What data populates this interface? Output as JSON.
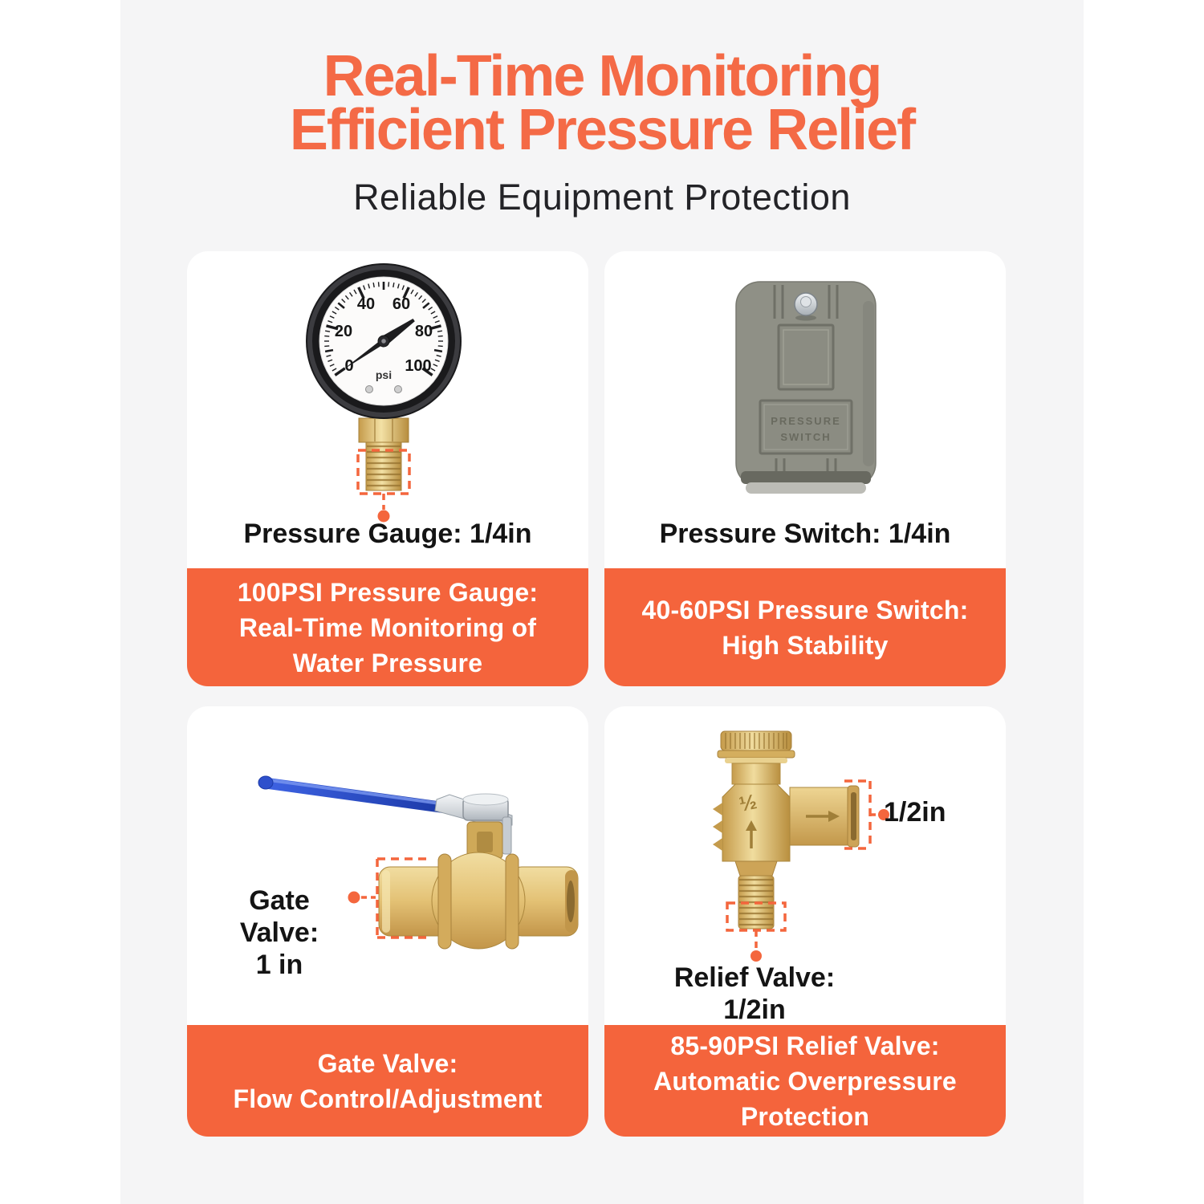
{
  "header": {
    "title_line1": "Real-Time Monitoring",
    "title_line2": "Efficient Pressure Relief",
    "subtitle": "Reliable Equipment Protection"
  },
  "colors": {
    "accent_orange": "#F4663D",
    "banner_orange": "#F4643C",
    "title_orange": "#F46A46",
    "panel_gray": "#F5F5F6",
    "card_white": "#FFFFFF"
  },
  "cards": {
    "pressure_gauge": {
      "size_label": "Pressure Gauge: 1/4in",
      "banner_lines": [
        "100PSI Pressure Gauge:",
        "Real-Time Monitoring of",
        "Water Pressure"
      ],
      "dial_labels": [
        "0",
        "20",
        "40",
        "60",
        "80",
        "100"
      ],
      "dial_unit": "psi"
    },
    "pressure_switch": {
      "size_label": "Pressure Switch: 1/4in",
      "banner_lines": [
        "40-60PSI Pressure Switch:",
        "High Stability"
      ],
      "embossed_line1": "PRESSURE",
      "embossed_line2": "SWITCH"
    },
    "gate_valve": {
      "size_label_line1": "Gate Valve:",
      "size_label_line2": "1 in",
      "banner_lines": [
        "Gate Valve:",
        "Flow Control/Adjustment"
      ]
    },
    "relief_valve": {
      "port_size_label": "1/2in",
      "body_marking": "½",
      "size_label": "Relief Valve: 1/2in",
      "banner_lines": [
        "85-90PSI Relief Valve:",
        "Automatic Overpressure",
        "Protection"
      ]
    }
  }
}
